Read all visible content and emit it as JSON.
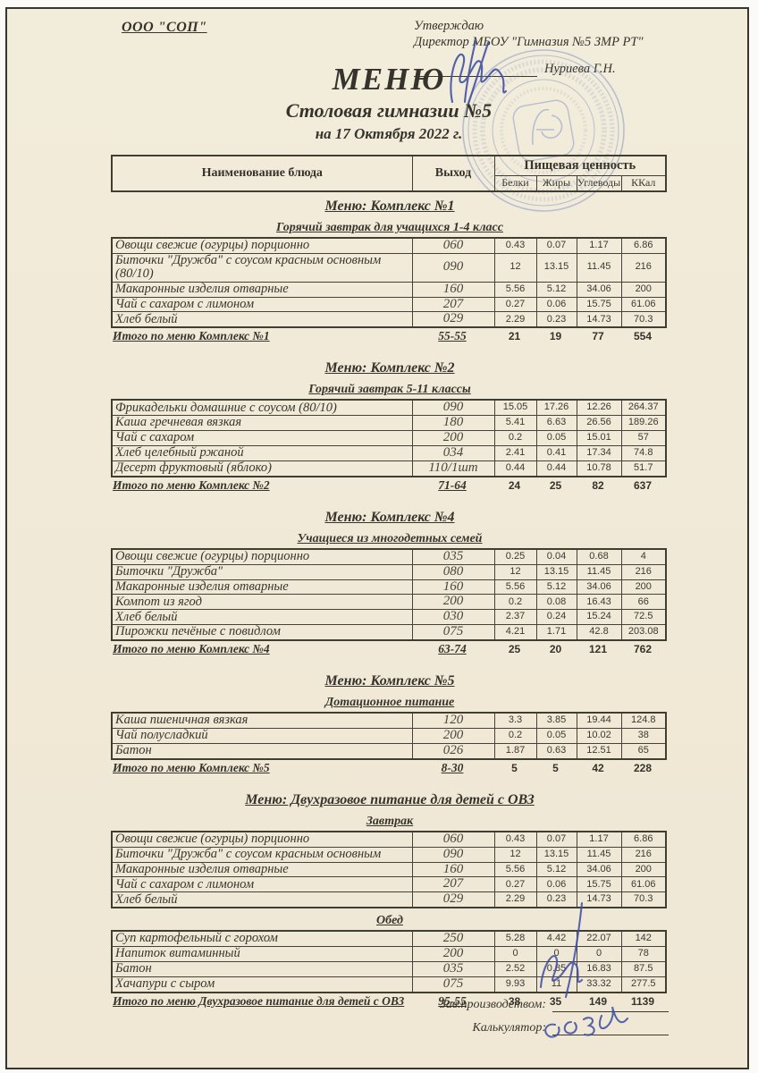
{
  "header": {
    "org": "ООО \"СОП\"",
    "approval_line1": "Утверждаю",
    "approval_line2": "Директор МБОУ \"Гимназия №5 ЗМР РТ\"",
    "director_name": "Нуриева Г.Н.",
    "title": "МЕНЮ",
    "subtitle": "Столовая гимназии №5",
    "date_line": "на 17 Октября 2022 г."
  },
  "table_header": {
    "dish": "Наименование блюда",
    "output": "Выход",
    "nutrition": "Пищевая ценность",
    "cols": [
      "Белки",
      "Жиры",
      "Углеводы",
      "ККал"
    ]
  },
  "sections": [
    {
      "title": "Меню: Комплекс №1",
      "groups": [
        {
          "subtitle": "Горячий завтрак для учащихся 1-4 класс",
          "rows": [
            [
              "Овощи свежие (огурцы) порционно",
              "060",
              "0.43",
              "0.07",
              "1.17",
              "6.86"
            ],
            [
              "Биточки  \"Дружба\" с соусом красным основным (80/10)",
              "090",
              "12",
              "13.15",
              "11.45",
              "216"
            ],
            [
              "Макаронные изделия отварные",
              "160",
              "5.56",
              "5.12",
              "34.06",
              "200"
            ],
            [
              "Чай с сахаром с лимоном",
              "207",
              "0.27",
              "0.06",
              "15.75",
              "61.06"
            ],
            [
              "Хлеб белый",
              "029",
              "2.29",
              "0.23",
              "14.73",
              "70.3"
            ]
          ]
        }
      ],
      "total": {
        "label": "Итого по меню Комплекс №1",
        "vyhod": "55-55",
        "values": [
          "21",
          "19",
          "77",
          "554"
        ]
      }
    },
    {
      "title": "Меню: Комплекс №2",
      "groups": [
        {
          "subtitle": "Горячий завтрак 5-11 классы",
          "rows": [
            [
              "Фрикадельки домашние с соусом (80/10)",
              "090",
              "15.05",
              "17.26",
              "12.26",
              "264.37"
            ],
            [
              "Каша гречневая вязкая",
              "180",
              "5.41",
              "6.63",
              "26.56",
              "189.26"
            ],
            [
              "Чай с сахаром",
              "200",
              "0.2",
              "0.05",
              "15.01",
              "57"
            ],
            [
              "Хлеб  целебный ржаной",
              "034",
              "2.41",
              "0.41",
              "17.34",
              "74.8"
            ],
            [
              "Десерт фруктовый (яблоко)",
              "110/1шт",
              "0.44",
              "0.44",
              "10.78",
              "51.7"
            ]
          ]
        }
      ],
      "total": {
        "label": "Итого по меню Комплекс №2",
        "vyhod": "71-64",
        "values": [
          "24",
          "25",
          "82",
          "637"
        ]
      }
    },
    {
      "title": "Меню: Комплекс №4",
      "groups": [
        {
          "subtitle": "Учащиеся из многодетных семей",
          "rows": [
            [
              "Овощи свежие (огурцы) порционно",
              "035",
              "0.25",
              "0.04",
              "0.68",
              "4"
            ],
            [
              "Биточки  \"Дружба\"",
              "080",
              "12",
              "13.15",
              "11.45",
              "216"
            ],
            [
              "Макаронные изделия отварные",
              "160",
              "5.56",
              "5.12",
              "34.06",
              "200"
            ],
            [
              "Компот из  ягод",
              "200",
              "0.2",
              "0.08",
              "16.43",
              "66"
            ],
            [
              "Хлеб  белый",
              "030",
              "2.37",
              "0.24",
              "15.24",
              "72.5"
            ],
            [
              "Пирожки печёные с повидлом",
              "075",
              "4.21",
              "1.71",
              "42.8",
              "203.08"
            ]
          ]
        }
      ],
      "total": {
        "label": "Итого по меню Комплекс №4",
        "vyhod": "63-74",
        "values": [
          "25",
          "20",
          "121",
          "762"
        ]
      }
    },
    {
      "title": "Меню: Комплекс №5",
      "groups": [
        {
          "subtitle": "Дотационное питание",
          "rows": [
            [
              "Каша пшеничная вязкая",
              "120",
              "3.3",
              "3.85",
              "19.44",
              "124.8"
            ],
            [
              "Чай полусладкий",
              "200",
              "0.2",
              "0.05",
              "10.02",
              "38"
            ],
            [
              "Батон",
              "026",
              "1.87",
              "0.63",
              "12.51",
              "65"
            ]
          ]
        }
      ],
      "total": {
        "label": "Итого по меню Комплекс №5",
        "vyhod": "8-30",
        "values": [
          "5",
          "5",
          "42",
          "228"
        ]
      }
    },
    {
      "title": "Меню: Двухразовое питание для детей с ОВЗ",
      "groups": [
        {
          "subtitle": "Завтрак",
          "rows": [
            [
              "Овощи свежие (огурцы) порционно",
              "060",
              "0.43",
              "0.07",
              "1.17",
              "6.86"
            ],
            [
              "Биточки  \"Дружба\" с соусом красным основным",
              "090",
              "12",
              "13.15",
              "11.45",
              "216"
            ],
            [
              "Макаронные изделия отварные",
              "160",
              "5.56",
              "5.12",
              "34.06",
              "200"
            ],
            [
              "Чай с сахаром с лимоном",
              "207",
              "0.27",
              "0.06",
              "15.75",
              "61.06"
            ],
            [
              "Хлеб белый",
              "029",
              "2.29",
              "0.23",
              "14.73",
              "70.3"
            ]
          ]
        },
        {
          "subtitle": "Обед",
          "rows": [
            [
              "Суп картофельный с горохом",
              "250",
              "5.28",
              "4.42",
              "22.07",
              "142"
            ],
            [
              "Напиток витаминный",
              "200",
              "0",
              "0",
              "0",
              "78"
            ],
            [
              "Батон",
              "035",
              "2.52",
              "0.85",
              "16.83",
              "87.5"
            ],
            [
              "Хачапури с сыром",
              "075",
              "9.93",
              "11",
              "33.32",
              "277.5"
            ]
          ]
        }
      ],
      "total": {
        "label": "Итого по меню Двухразовое питание для детей с ОВЗ",
        "vyhod": "95-55",
        "values": [
          "38",
          "35",
          "149",
          "1139"
        ]
      }
    }
  ],
  "footer": {
    "production_label": "Зав.производством:",
    "calculator_label": "Калькулятор:"
  },
  "icons": {
    "stamp": "round-blue-stamp",
    "signatures": "blue-ink-signatures"
  },
  "colors": {
    "paper": "#f1ead8",
    "border": "#403d31",
    "ink_blue": "#3c4da3",
    "stamp_blue": "#7e91c8"
  }
}
